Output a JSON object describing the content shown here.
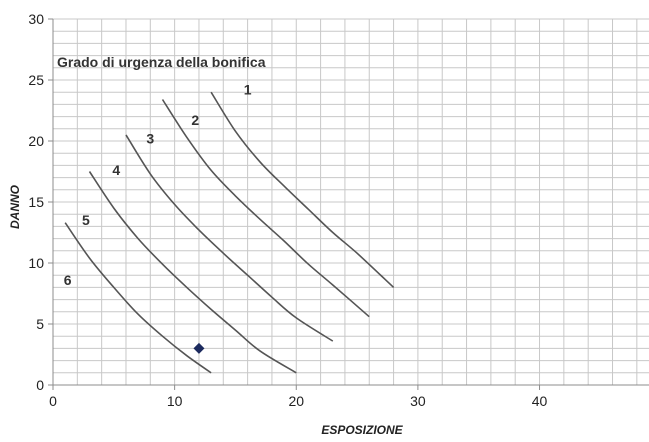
{
  "chart_data": {
    "type": "line",
    "title": "Grado di urgenza della bonifica",
    "xlabel": "ESPOSIZIONE",
    "ylabel": "DANNO",
    "xlim": [
      0,
      49
    ],
    "ylim": [
      0,
      30
    ],
    "x_ticks": [
      0,
      10,
      20,
      30,
      40
    ],
    "y_ticks": [
      0,
      5,
      10,
      15,
      20,
      25,
      30
    ],
    "minor_grid_step": 2,
    "grid": true,
    "series": [
      {
        "label": "1",
        "label_position": [
          16,
          23.8
        ],
        "x": [
          13,
          15,
          17,
          19,
          21,
          23,
          25,
          28
        ],
        "y": [
          24,
          20.8,
          18.3,
          16.3,
          14.4,
          12.5,
          10.8,
          8
        ]
      },
      {
        "label": "2",
        "label_position": [
          11.7,
          21.3
        ],
        "x": [
          9,
          11,
          13,
          15,
          17,
          19,
          21,
          23,
          26
        ],
        "y": [
          23.4,
          20.3,
          17.6,
          15.5,
          13.6,
          11.8,
          9.9,
          8.2,
          5.6
        ]
      },
      {
        "label": "3",
        "label_position": [
          8,
          19.8
        ],
        "x": [
          6,
          8,
          10,
          12,
          14,
          16,
          18,
          20,
          23
        ],
        "y": [
          20.5,
          17.3,
          14.8,
          12.7,
          10.8,
          9,
          7.2,
          5.5,
          3.6
        ]
      },
      {
        "label": "4",
        "label_position": [
          5.2,
          17.2
        ],
        "x": [
          3,
          5,
          7,
          9,
          11,
          13,
          15,
          17,
          20
        ],
        "y": [
          17.5,
          14.5,
          12,
          9.9,
          8,
          6.2,
          4.5,
          2.8,
          1
        ]
      },
      {
        "label": "5",
        "label_position": [
          2.7,
          13.1
        ],
        "x": [
          1,
          3,
          5,
          7,
          9,
          11,
          13
        ],
        "y": [
          13.3,
          10.4,
          8,
          5.8,
          4,
          2.4,
          1
        ]
      },
      {
        "label": "6",
        "label_position": [
          1.2,
          8.2
        ],
        "x": [],
        "y": []
      }
    ],
    "points": [
      {
        "x": 12,
        "y": 3
      }
    ],
    "colors": {
      "curve": "#555555",
      "marker": "#1c2a5e",
      "grid": "#c8c8c8",
      "axis": "#8c8c8c",
      "text": "#222222"
    }
  }
}
